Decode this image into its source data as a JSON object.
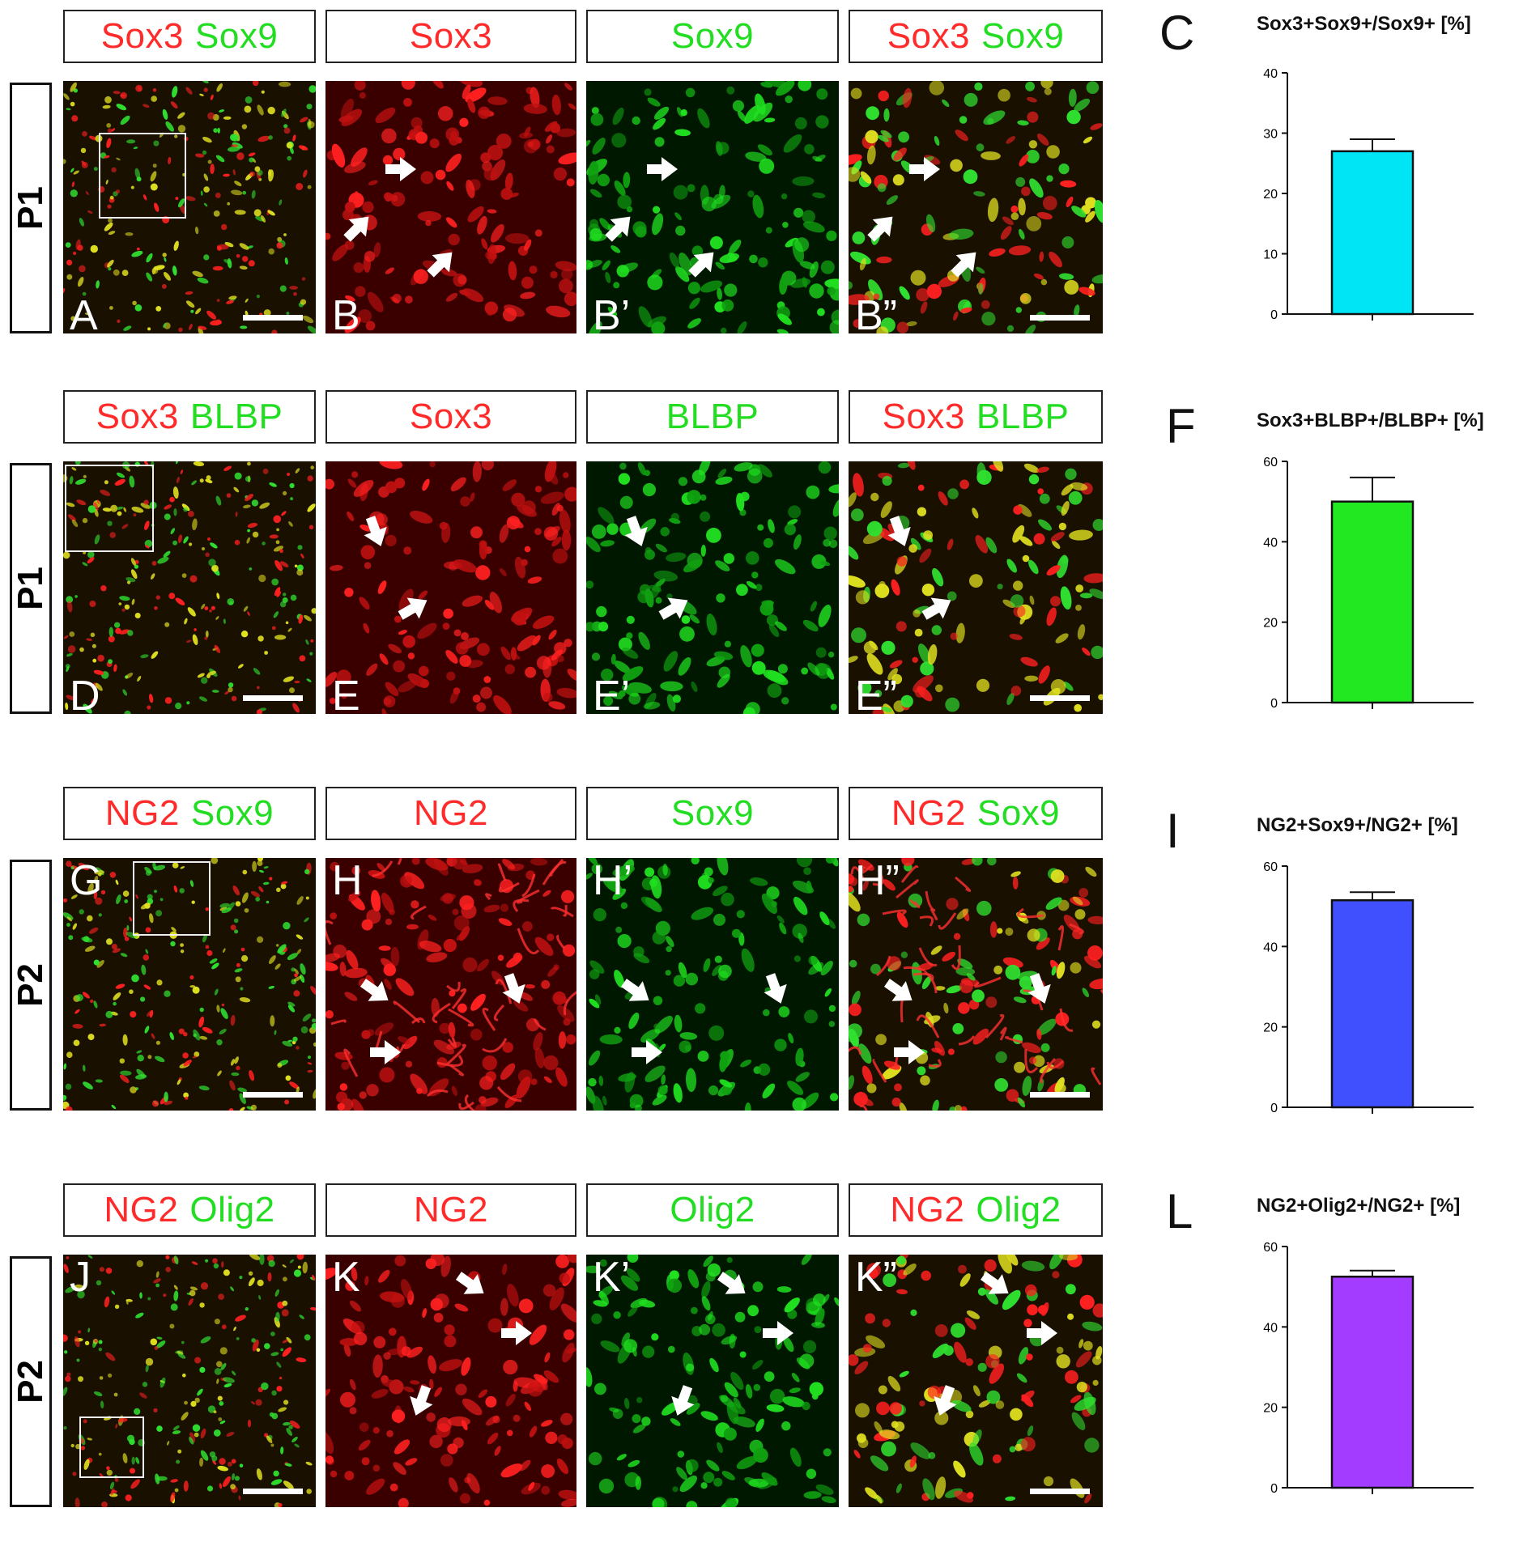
{
  "colors": {
    "red": "#ff2a2a",
    "green": "#22dd22",
    "merge": "#d8e000"
  },
  "rows": [
    {
      "stage": "P1",
      "labels": [
        {
          "red": "Sox3",
          "green": "Sox9"
        },
        {
          "red": "Sox3",
          "green": ""
        },
        {
          "red": "",
          "green": "Sox9"
        },
        {
          "red": "Sox3",
          "green": "Sox9"
        }
      ],
      "panels": [
        {
          "letter": "A",
          "type": "overview-merge",
          "scalebar": true
        },
        {
          "letter": "B",
          "type": "red",
          "scalebar": false
        },
        {
          "letter": "B’",
          "type": "green",
          "scalebar": false
        },
        {
          "letter": "B”",
          "type": "merge",
          "scalebar": true
        }
      ]
    },
    {
      "stage": "P1",
      "labels": [
        {
          "red": "Sox3",
          "green": "BLBP"
        },
        {
          "red": "Sox3",
          "green": ""
        },
        {
          "red": "",
          "green": "BLBP"
        },
        {
          "red": "Sox3",
          "green": "BLBP"
        }
      ],
      "panels": [
        {
          "letter": "D",
          "type": "overview-merge",
          "scalebar": true
        },
        {
          "letter": "E",
          "type": "red",
          "scalebar": false
        },
        {
          "letter": "E’",
          "type": "green",
          "scalebar": false
        },
        {
          "letter": "E”",
          "type": "merge",
          "scalebar": true
        }
      ]
    },
    {
      "stage": "P2",
      "labels": [
        {
          "red": "NG2",
          "green": "Sox9"
        },
        {
          "red": "NG2",
          "green": ""
        },
        {
          "red": "",
          "green": "Sox9"
        },
        {
          "red": "NG2",
          "green": "Sox9"
        }
      ],
      "panels": [
        {
          "letter": "G",
          "type": "overview-merge",
          "scalebar": true
        },
        {
          "letter": "H",
          "type": "red",
          "scalebar": false
        },
        {
          "letter": "H’",
          "type": "green",
          "scalebar": false
        },
        {
          "letter": "H”",
          "type": "merge",
          "scalebar": true
        }
      ]
    },
    {
      "stage": "P2",
      "labels": [
        {
          "red": "NG2",
          "green": "Olig2"
        },
        {
          "red": "NG2",
          "green": ""
        },
        {
          "red": "",
          "green": "Olig2"
        },
        {
          "red": "NG2",
          "green": "Olig2"
        }
      ],
      "panels": [
        {
          "letter": "J",
          "type": "overview-merge",
          "scalebar": true
        },
        {
          "letter": "K",
          "type": "red",
          "scalebar": false
        },
        {
          "letter": "K’",
          "type": "green",
          "scalebar": false
        },
        {
          "letter": "K”",
          "type": "merge",
          "scalebar": true
        }
      ]
    }
  ],
  "chart_data": [
    {
      "type": "bar",
      "letter": "C",
      "title": "Sox3+Sox9+/Sox9+ [%]",
      "values": [
        27
      ],
      "error": [
        2
      ],
      "ylim": [
        0,
        40
      ],
      "yticks": [
        0,
        10,
        20,
        30,
        40
      ],
      "color": "#00e5f5"
    },
    {
      "type": "bar",
      "letter": "F",
      "title": "Sox3+BLBP+/BLBP+ [%]",
      "values": [
        50
      ],
      "error": [
        6
      ],
      "ylim": [
        0,
        60
      ],
      "yticks": [
        0,
        20,
        40,
        60
      ],
      "color": "#22e822"
    },
    {
      "type": "bar",
      "letter": "I",
      "title": "NG2+Sox9+/NG2+ [%]",
      "values": [
        51.5
      ],
      "error": [
        2
      ],
      "ylim": [
        0,
        60
      ],
      "yticks": [
        0,
        20,
        40,
        60
      ],
      "color": "#4050ff"
    },
    {
      "type": "bar",
      "letter": "L",
      "title": "NG2+Olig2+/NG2+ [%]",
      "values": [
        52.5
      ],
      "error": [
        1.5
      ],
      "ylim": [
        0,
        60
      ],
      "yticks": [
        0,
        20,
        40,
        60
      ],
      "color": "#a43cff"
    }
  ]
}
